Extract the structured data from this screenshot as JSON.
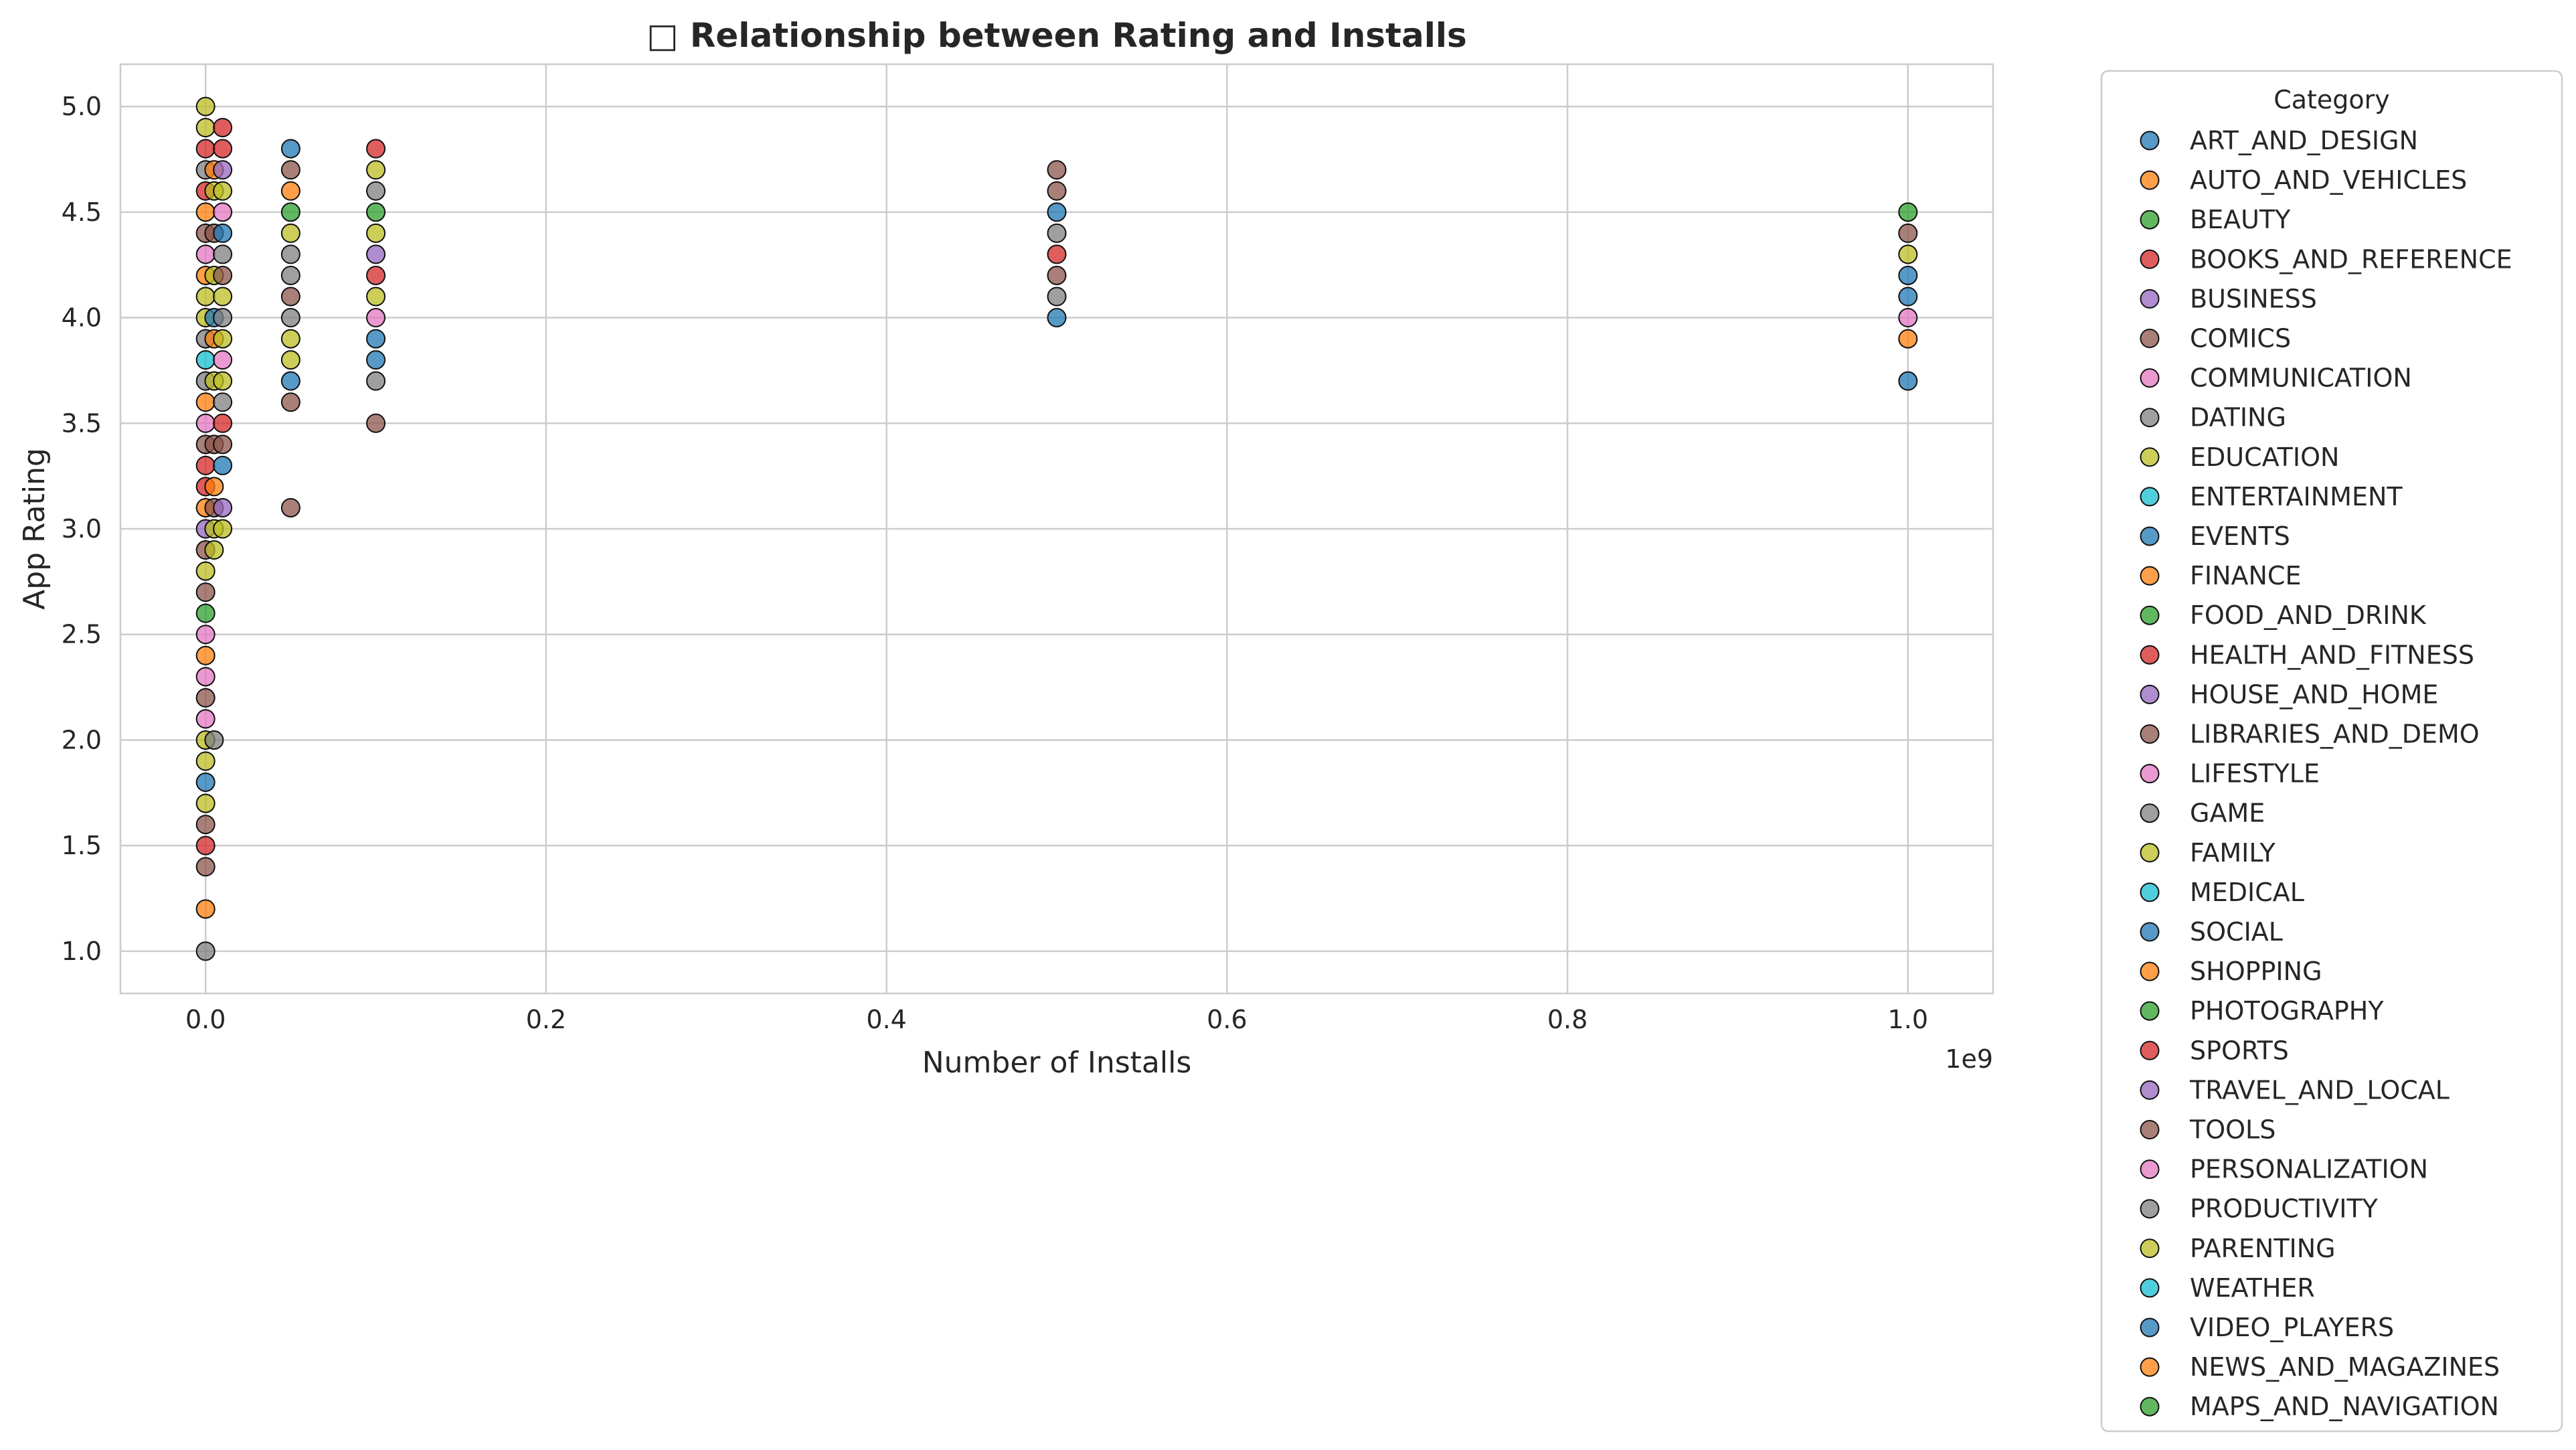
{
  "chart_data": {
    "type": "scatter",
    "title": "□ Relationship between Rating and Installs",
    "xlabel": "Number of Installs",
    "ylabel": "App Rating",
    "x_offset_label": "1e9",
    "xlim": [
      -0.05,
      1.05
    ],
    "ylim": [
      0.8,
      5.2
    ],
    "x_ticks": [
      0.0,
      0.2,
      0.4,
      0.6,
      0.8,
      1.0
    ],
    "x_tick_labels": [
      "0.0",
      "0.2",
      "0.4",
      "0.6",
      "0.8",
      "1.0"
    ],
    "y_ticks": [
      1.0,
      1.5,
      2.0,
      2.5,
      3.0,
      3.5,
      4.0,
      4.5,
      5.0
    ],
    "y_tick_labels": [
      "1.0",
      "1.5",
      "2.0",
      "2.5",
      "3.0",
      "3.5",
      "4.0",
      "4.5",
      "5.0"
    ],
    "grid": true,
    "legend": {
      "title": "Category",
      "placement": "outside-right",
      "entries": [
        {
          "name": "ART_AND_DESIGN",
          "color": "#1f77b4"
        },
        {
          "name": "AUTO_AND_VEHICLES",
          "color": "#ff7f0e"
        },
        {
          "name": "BEAUTY",
          "color": "#2ca02c"
        },
        {
          "name": "BOOKS_AND_REFERENCE",
          "color": "#d62728"
        },
        {
          "name": "BUSINESS",
          "color": "#9467bd"
        },
        {
          "name": "COMICS",
          "color": "#8c564b"
        },
        {
          "name": "COMMUNICATION",
          "color": "#e377c2"
        },
        {
          "name": "DATING",
          "color": "#7f7f7f"
        },
        {
          "name": "EDUCATION",
          "color": "#bcbd22"
        },
        {
          "name": "ENTERTAINMENT",
          "color": "#17becf"
        },
        {
          "name": "EVENTS",
          "color": "#1f77b4"
        },
        {
          "name": "FINANCE",
          "color": "#ff7f0e"
        },
        {
          "name": "FOOD_AND_DRINK",
          "color": "#2ca02c"
        },
        {
          "name": "HEALTH_AND_FITNESS",
          "color": "#d62728"
        },
        {
          "name": "HOUSE_AND_HOME",
          "color": "#9467bd"
        },
        {
          "name": "LIBRARIES_AND_DEMO",
          "color": "#8c564b"
        },
        {
          "name": "LIFESTYLE",
          "color": "#e377c2"
        },
        {
          "name": "GAME",
          "color": "#7f7f7f"
        },
        {
          "name": "FAMILY",
          "color": "#bcbd22"
        },
        {
          "name": "MEDICAL",
          "color": "#17becf"
        },
        {
          "name": "SOCIAL",
          "color": "#1f77b4"
        },
        {
          "name": "SHOPPING",
          "color": "#ff7f0e"
        },
        {
          "name": "PHOTOGRAPHY",
          "color": "#2ca02c"
        },
        {
          "name": "SPORTS",
          "color": "#d62728"
        },
        {
          "name": "TRAVEL_AND_LOCAL",
          "color": "#9467bd"
        },
        {
          "name": "TOOLS",
          "color": "#8c564b"
        },
        {
          "name": "PERSONALIZATION",
          "color": "#e377c2"
        },
        {
          "name": "PRODUCTIVITY",
          "color": "#7f7f7f"
        },
        {
          "name": "PARENTING",
          "color": "#bcbd22"
        },
        {
          "name": "WEATHER",
          "color": "#17becf"
        },
        {
          "name": "VIDEO_PLAYERS",
          "color": "#1f77b4"
        },
        {
          "name": "NEWS_AND_MAGAZINES",
          "color": "#ff7f0e"
        },
        {
          "name": "MAPS_AND_NAVIGATION",
          "color": "#2ca02c"
        }
      ]
    },
    "points": [
      {
        "x": 0.0,
        "y": 5.0,
        "c": "#bcbd22"
      },
      {
        "x": 0.0,
        "y": 4.9,
        "c": "#bcbd22"
      },
      {
        "x": 0.0,
        "y": 4.8,
        "c": "#d62728"
      },
      {
        "x": 0.0,
        "y": 4.7,
        "c": "#7f7f7f"
      },
      {
        "x": 0.0,
        "y": 4.6,
        "c": "#d62728"
      },
      {
        "x": 0.0,
        "y": 4.5,
        "c": "#ff7f0e"
      },
      {
        "x": 0.0,
        "y": 4.4,
        "c": "#8c564b"
      },
      {
        "x": 0.0,
        "y": 4.3,
        "c": "#e377c2"
      },
      {
        "x": 0.0,
        "y": 4.2,
        "c": "#ff7f0e"
      },
      {
        "x": 0.0,
        "y": 4.1,
        "c": "#bcbd22"
      },
      {
        "x": 0.0,
        "y": 4.0,
        "c": "#bcbd22"
      },
      {
        "x": 0.0,
        "y": 3.9,
        "c": "#7f7f7f"
      },
      {
        "x": 0.0,
        "y": 3.8,
        "c": "#17becf"
      },
      {
        "x": 0.0,
        "y": 3.7,
        "c": "#7f7f7f"
      },
      {
        "x": 0.0,
        "y": 3.6,
        "c": "#ff7f0e"
      },
      {
        "x": 0.0,
        "y": 3.5,
        "c": "#e377c2"
      },
      {
        "x": 0.0,
        "y": 3.4,
        "c": "#8c564b"
      },
      {
        "x": 0.0,
        "y": 3.3,
        "c": "#d62728"
      },
      {
        "x": 0.0,
        "y": 3.2,
        "c": "#d62728"
      },
      {
        "x": 0.0,
        "y": 3.1,
        "c": "#ff7f0e"
      },
      {
        "x": 0.0,
        "y": 3.0,
        "c": "#9467bd"
      },
      {
        "x": 0.0,
        "y": 2.9,
        "c": "#8c564b"
      },
      {
        "x": 0.0,
        "y": 2.8,
        "c": "#bcbd22"
      },
      {
        "x": 0.0,
        "y": 2.7,
        "c": "#8c564b"
      },
      {
        "x": 0.0,
        "y": 2.6,
        "c": "#2ca02c"
      },
      {
        "x": 0.0,
        "y": 2.5,
        "c": "#e377c2"
      },
      {
        "x": 0.0,
        "y": 2.4,
        "c": "#ff7f0e"
      },
      {
        "x": 0.0,
        "y": 2.3,
        "c": "#e377c2"
      },
      {
        "x": 0.0,
        "y": 2.2,
        "c": "#8c564b"
      },
      {
        "x": 0.0,
        "y": 2.1,
        "c": "#e377c2"
      },
      {
        "x": 0.0,
        "y": 2.0,
        "c": "#bcbd22"
      },
      {
        "x": 0.0,
        "y": 1.9,
        "c": "#bcbd22"
      },
      {
        "x": 0.0,
        "y": 1.8,
        "c": "#1f77b4"
      },
      {
        "x": 0.0,
        "y": 1.7,
        "c": "#bcbd22"
      },
      {
        "x": 0.0,
        "y": 1.6,
        "c": "#8c564b"
      },
      {
        "x": 0.0,
        "y": 1.5,
        "c": "#d62728"
      },
      {
        "x": 0.0,
        "y": 1.4,
        "c": "#8c564b"
      },
      {
        "x": 0.0,
        "y": 1.2,
        "c": "#ff7f0e"
      },
      {
        "x": 0.0,
        "y": 1.0,
        "c": "#7f7f7f"
      },
      {
        "x": 0.005,
        "y": 4.7,
        "c": "#ff7f0e"
      },
      {
        "x": 0.005,
        "y": 4.6,
        "c": "#bcbd22"
      },
      {
        "x": 0.005,
        "y": 4.4,
        "c": "#8c564b"
      },
      {
        "x": 0.005,
        "y": 4.2,
        "c": "#bcbd22"
      },
      {
        "x": 0.005,
        "y": 4.0,
        "c": "#1f77b4"
      },
      {
        "x": 0.005,
        "y": 3.9,
        "c": "#ff7f0e"
      },
      {
        "x": 0.005,
        "y": 3.7,
        "c": "#bcbd22"
      },
      {
        "x": 0.005,
        "y": 3.4,
        "c": "#8c564b"
      },
      {
        "x": 0.005,
        "y": 3.2,
        "c": "#ff7f0e"
      },
      {
        "x": 0.005,
        "y": 3.1,
        "c": "#8c564b"
      },
      {
        "x": 0.005,
        "y": 3.0,
        "c": "#bcbd22"
      },
      {
        "x": 0.005,
        "y": 2.9,
        "c": "#bcbd22"
      },
      {
        "x": 0.005,
        "y": 2.0,
        "c": "#7f7f7f"
      },
      {
        "x": 0.01,
        "y": 4.9,
        "c": "#d62728"
      },
      {
        "x": 0.01,
        "y": 4.8,
        "c": "#d62728"
      },
      {
        "x": 0.01,
        "y": 4.7,
        "c": "#9467bd"
      },
      {
        "x": 0.01,
        "y": 4.6,
        "c": "#bcbd22"
      },
      {
        "x": 0.01,
        "y": 4.5,
        "c": "#e377c2"
      },
      {
        "x": 0.01,
        "y": 4.4,
        "c": "#1f77b4"
      },
      {
        "x": 0.01,
        "y": 4.3,
        "c": "#7f7f7f"
      },
      {
        "x": 0.01,
        "y": 4.2,
        "c": "#8c564b"
      },
      {
        "x": 0.01,
        "y": 4.1,
        "c": "#bcbd22"
      },
      {
        "x": 0.01,
        "y": 4.0,
        "c": "#7f7f7f"
      },
      {
        "x": 0.01,
        "y": 3.9,
        "c": "#bcbd22"
      },
      {
        "x": 0.01,
        "y": 3.8,
        "c": "#e377c2"
      },
      {
        "x": 0.01,
        "y": 3.7,
        "c": "#bcbd22"
      },
      {
        "x": 0.01,
        "y": 3.6,
        "c": "#7f7f7f"
      },
      {
        "x": 0.01,
        "y": 3.5,
        "c": "#d62728"
      },
      {
        "x": 0.01,
        "y": 3.4,
        "c": "#8c564b"
      },
      {
        "x": 0.01,
        "y": 3.3,
        "c": "#1f77b4"
      },
      {
        "x": 0.01,
        "y": 3.1,
        "c": "#9467bd"
      },
      {
        "x": 0.01,
        "y": 3.0,
        "c": "#bcbd22"
      },
      {
        "x": 0.05,
        "y": 4.8,
        "c": "#1f77b4"
      },
      {
        "x": 0.05,
        "y": 4.7,
        "c": "#8c564b"
      },
      {
        "x": 0.05,
        "y": 4.6,
        "c": "#ff7f0e"
      },
      {
        "x": 0.05,
        "y": 4.5,
        "c": "#2ca02c"
      },
      {
        "x": 0.05,
        "y": 4.4,
        "c": "#bcbd22"
      },
      {
        "x": 0.05,
        "y": 4.3,
        "c": "#7f7f7f"
      },
      {
        "x": 0.05,
        "y": 4.2,
        "c": "#7f7f7f"
      },
      {
        "x": 0.05,
        "y": 4.1,
        "c": "#8c564b"
      },
      {
        "x": 0.05,
        "y": 4.0,
        "c": "#7f7f7f"
      },
      {
        "x": 0.05,
        "y": 3.9,
        "c": "#bcbd22"
      },
      {
        "x": 0.05,
        "y": 3.8,
        "c": "#bcbd22"
      },
      {
        "x": 0.05,
        "y": 3.7,
        "c": "#1f77b4"
      },
      {
        "x": 0.05,
        "y": 3.6,
        "c": "#8c564b"
      },
      {
        "x": 0.05,
        "y": 3.1,
        "c": "#8c564b"
      },
      {
        "x": 0.1,
        "y": 4.8,
        "c": "#d62728"
      },
      {
        "x": 0.1,
        "y": 4.7,
        "c": "#bcbd22"
      },
      {
        "x": 0.1,
        "y": 4.6,
        "c": "#7f7f7f"
      },
      {
        "x": 0.1,
        "y": 4.5,
        "c": "#2ca02c"
      },
      {
        "x": 0.1,
        "y": 4.4,
        "c": "#bcbd22"
      },
      {
        "x": 0.1,
        "y": 4.3,
        "c": "#9467bd"
      },
      {
        "x": 0.1,
        "y": 4.2,
        "c": "#d62728"
      },
      {
        "x": 0.1,
        "y": 4.1,
        "c": "#bcbd22"
      },
      {
        "x": 0.1,
        "y": 4.0,
        "c": "#e377c2"
      },
      {
        "x": 0.1,
        "y": 3.9,
        "c": "#1f77b4"
      },
      {
        "x": 0.1,
        "y": 3.8,
        "c": "#1f77b4"
      },
      {
        "x": 0.1,
        "y": 3.7,
        "c": "#7f7f7f"
      },
      {
        "x": 0.1,
        "y": 3.5,
        "c": "#8c564b"
      },
      {
        "x": 0.5,
        "y": 4.7,
        "c": "#8c564b"
      },
      {
        "x": 0.5,
        "y": 4.6,
        "c": "#8c564b"
      },
      {
        "x": 0.5,
        "y": 4.5,
        "c": "#1f77b4"
      },
      {
        "x": 0.5,
        "y": 4.4,
        "c": "#7f7f7f"
      },
      {
        "x": 0.5,
        "y": 4.3,
        "c": "#d62728"
      },
      {
        "x": 0.5,
        "y": 4.2,
        "c": "#8c564b"
      },
      {
        "x": 0.5,
        "y": 4.1,
        "c": "#7f7f7f"
      },
      {
        "x": 0.5,
        "y": 4.0,
        "c": "#1f77b4"
      },
      {
        "x": 1.0,
        "y": 4.5,
        "c": "#2ca02c"
      },
      {
        "x": 1.0,
        "y": 4.4,
        "c": "#8c564b"
      },
      {
        "x": 1.0,
        "y": 4.3,
        "c": "#bcbd22"
      },
      {
        "x": 1.0,
        "y": 4.2,
        "c": "#1f77b4"
      },
      {
        "x": 1.0,
        "y": 4.1,
        "c": "#1f77b4"
      },
      {
        "x": 1.0,
        "y": 4.0,
        "c": "#e377c2"
      },
      {
        "x": 1.0,
        "y": 3.9,
        "c": "#ff7f0e"
      },
      {
        "x": 1.0,
        "y": 3.7,
        "c": "#1f77b4"
      }
    ]
  }
}
